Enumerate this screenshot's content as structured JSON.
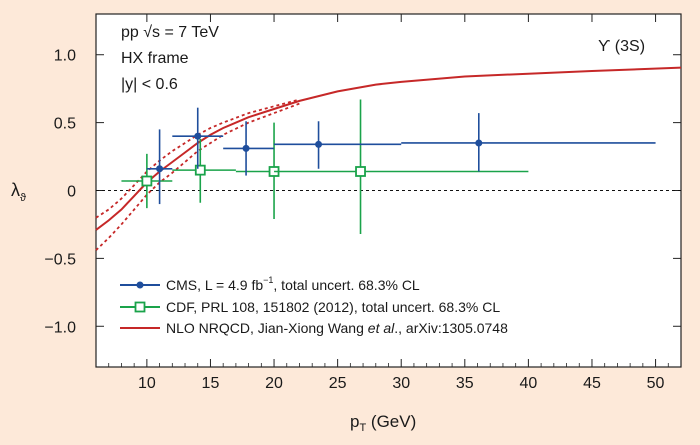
{
  "chart_data": {
    "type": "scatter",
    "xlabel": "p",
    "xlabel_sub": "T",
    "xlabel_unit": " (GeV)",
    "ylabel": "λ",
    "ylabel_sub": "ϑ",
    "xlim": [
      6,
      52
    ],
    "ylim": [
      -1.3,
      1.3
    ],
    "xticks": [
      10,
      15,
      20,
      25,
      30,
      35,
      40,
      45,
      50
    ],
    "yticks": [
      -1.0,
      -0.5,
      0,
      0.5,
      1.0
    ],
    "ytick_labels": [
      "−1.0",
      "−0.5",
      "0",
      "0.5",
      "1.0"
    ],
    "reference_line": 0,
    "annotations": {
      "system": "pp √s = 7 TeV",
      "frame": "HX frame",
      "rapidity": "|y| < 0.6",
      "state": "ϒ (3S)"
    },
    "series": [
      {
        "name": "CMS",
        "legend": "CMS, L = 4.9 fb",
        "legend_sup": "−1",
        "legend_tail": ", total uncert. 68.3% CL",
        "color": "#1f4e9c",
        "marker": "filled-circle",
        "points": [
          {
            "x": 11.0,
            "xlo": 10,
            "xhi": 12,
            "y": 0.16,
            "ylo": -0.1,
            "yhi": 0.45
          },
          {
            "x": 14.0,
            "xlo": 12,
            "xhi": 16,
            "y": 0.4,
            "ylo": 0.16,
            "yhi": 0.61
          },
          {
            "x": 17.8,
            "xlo": 16,
            "xhi": 20,
            "y": 0.31,
            "ylo": 0.11,
            "yhi": 0.51
          },
          {
            "x": 23.5,
            "xlo": 20,
            "xhi": 30,
            "y": 0.34,
            "ylo": 0.16,
            "yhi": 0.51
          },
          {
            "x": 36.1,
            "xlo": 30,
            "xhi": 50,
            "y": 0.35,
            "ylo": 0.14,
            "yhi": 0.57
          }
        ]
      },
      {
        "name": "CDF",
        "legend": "CDF, PRL 108, 151802 (2012), total uncert. 68.3% CL",
        "color": "#1aa34a",
        "marker": "open-square",
        "points": [
          {
            "x": 10.0,
            "xlo": 8,
            "xhi": 12,
            "y": 0.07,
            "ylo": -0.13,
            "yhi": 0.27
          },
          {
            "x": 14.2,
            "xlo": 12,
            "xhi": 17,
            "y": 0.15,
            "ylo": -0.09,
            "yhi": 0.38
          },
          {
            "x": 20.0,
            "xlo": 17,
            "xhi": 20,
            "y": 0.14,
            "ylo": -0.21,
            "yhi": 0.5
          },
          {
            "x": 26.8,
            "xlo": 20,
            "xhi": 40,
            "y": 0.14,
            "ylo": -0.32,
            "yhi": 0.67
          }
        ]
      },
      {
        "name": "NLO NRQCD",
        "legend": "NLO NRQCD, Jian-Xiong Wang ",
        "legend_it": "et al",
        "legend_tail": "., arXiv:1305.0748",
        "color": "#c62828",
        "type": "line",
        "x": [
          6,
          7,
          8,
          9,
          10,
          11,
          12,
          13,
          14,
          15,
          16,
          18,
          20,
          22,
          25,
          28,
          30,
          35,
          40,
          45,
          52
        ],
        "y": [
          -0.29,
          -0.22,
          -0.14,
          -0.04,
          0.06,
          0.14,
          0.21,
          0.28,
          0.35,
          0.41,
          0.46,
          0.54,
          0.6,
          0.66,
          0.73,
          0.78,
          0.8,
          0.84,
          0.86,
          0.88,
          0.905
        ],
        "band_upper": [
          -0.2,
          -0.14,
          -0.06,
          0.04,
          0.14,
          0.22,
          0.29,
          0.35,
          0.41,
          0.46,
          0.5,
          0.57,
          0.62,
          0.67
        ],
        "band_lower": [
          -0.44,
          -0.35,
          -0.25,
          -0.14,
          -0.03,
          0.06,
          0.13,
          0.21,
          0.29,
          0.35,
          0.41,
          0.5,
          0.57,
          0.64
        ],
        "band_x": [
          6,
          7,
          8,
          9,
          10,
          11,
          12,
          13,
          14,
          15,
          16,
          18,
          20,
          22
        ]
      }
    ]
  }
}
